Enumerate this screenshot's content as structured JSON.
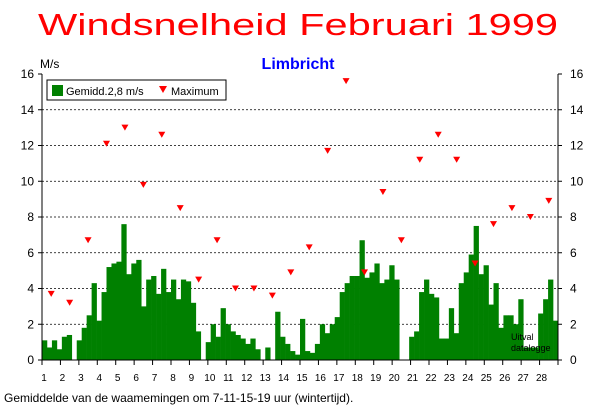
{
  "chart_data": {
    "type": "bar",
    "title": "Windsnelheid Februari 1999",
    "subtitle": "Limbricht",
    "ylabel": "M/s",
    "footnote": "Gemiddelde van de waamemingen om 7-11-15-19 uur (wintertijd).",
    "annotation": [
      "Uitval",
      "datalogge"
    ],
    "ylim": [
      0,
      16
    ],
    "yticks": [
      0,
      2,
      4,
      6,
      8,
      10,
      12,
      14,
      16
    ],
    "grid": true,
    "legend_position": "top-left",
    "colors": {
      "bars": "#008000",
      "markers": "#ff0000",
      "title": "#ff0000",
      "subtitle": "#0000ff"
    },
    "x_day_ticks": [
      "1",
      "2",
      "3",
      "4",
      "5",
      "6",
      "7",
      "8",
      "9",
      "10",
      "11",
      "12",
      "13",
      "14",
      "15",
      "16",
      "17",
      "18",
      "19",
      "20",
      "21",
      "22",
      "23",
      "24",
      "25",
      "26",
      "27",
      "28"
    ],
    "series": [
      {
        "name": "Gemidd.2,8 m/s",
        "type": "bar",
        "values": [
          1.1,
          0.7,
          1.1,
          0.6,
          1.3,
          1.4,
          0.0,
          1.1,
          1.8,
          2.5,
          4.3,
          2.2,
          3.8,
          5.2,
          5.4,
          5.5,
          7.6,
          4.8,
          5.4,
          5.6,
          3.0,
          4.5,
          4.7,
          3.7,
          5.1,
          3.8,
          4.5,
          3.4,
          4.5,
          4.4,
          3.2,
          1.6,
          0.0,
          1.0,
          2.0,
          1.3,
          2.9,
          2.0,
          1.6,
          1.4,
          1.2,
          0.9,
          1.2,
          0.6,
          0.0,
          0.7,
          0.0,
          2.7,
          1.3,
          0.9,
          0.5,
          0.3,
          2.3,
          0.5,
          0.4,
          0.9,
          2.0,
          1.5,
          2.0,
          2.4,
          3.8,
          4.3,
          4.7,
          4.7,
          6.7,
          4.6,
          4.9,
          5.4,
          4.3,
          4.5,
          5.3,
          4.5,
          0.0,
          0.0,
          1.3,
          1.6,
          3.8,
          4.5,
          3.7,
          3.5,
          1.2,
          1.2,
          2.9,
          1.5,
          4.3,
          4.9,
          5.9,
          7.5,
          4.8,
          5.3,
          3.1,
          4.3,
          1.8,
          2.5,
          2.5,
          2.0,
          3.4,
          0.7,
          0.7,
          0.7,
          2.6,
          3.4,
          4.5,
          2.2
        ]
      },
      {
        "name": "Maximum",
        "type": "scatter",
        "x": [
          1.5,
          2.5,
          3.5,
          4.5,
          5.5,
          6.5,
          7.5,
          8.5,
          9.5,
          10.5,
          11.5,
          12.5,
          13.5,
          14.5,
          15.5,
          16.5,
          17.5,
          18.5,
          19.5,
          20.5,
          21.5,
          22.5,
          23.5,
          24.5,
          25.5,
          26.5,
          27.5,
          28.5
        ],
        "values": [
          3.7,
          3.2,
          6.7,
          12.1,
          13.0,
          9.8,
          12.6,
          8.5,
          4.5,
          6.7,
          4.0,
          4.0,
          3.6,
          4.9,
          6.3,
          11.7,
          15.6,
          4.9,
          9.4,
          6.7,
          11.2,
          12.6,
          11.2,
          5.4,
          7.6,
          8.5,
          8.0,
          8.9
        ]
      }
    ]
  }
}
